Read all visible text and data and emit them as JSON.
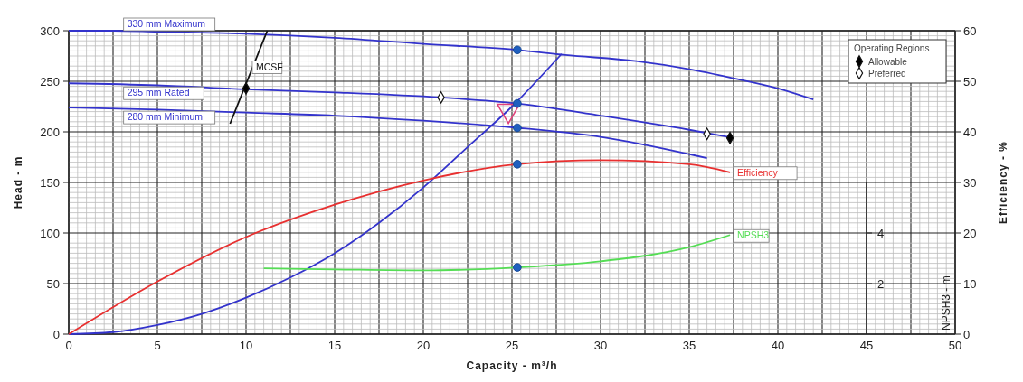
{
  "chart_data": {
    "type": "line",
    "xlabel": "Capacity - m³/h",
    "ylabel": "Head - m",
    "y2label": "Efficiency - %",
    "y3label": "NPSH3 - m",
    "legend_title": "Operating Regions",
    "legend": "top right",
    "grid": true,
    "marker": "none",
    "xlim": [
      0,
      50
    ],
    "xticks": [
      0,
      {
        "value": 2.5,
        "label": null
      },
      5,
      {
        "value": 7.5,
        "label": null
      },
      10,
      {
        "value": 12.5,
        "label": null
      },
      15,
      {
        "value": 17.5,
        "label": null
      },
      20,
      {
        "value": 22.5,
        "label": null
      },
      25,
      {
        "value": 27.5,
        "label": null
      },
      30,
      {
        "value": 32.5,
        "label": null
      },
      35,
      {
        "value": 37.5,
        "label": null
      },
      40,
      {
        "value": 42.5,
        "label": null
      },
      45,
      {
        "value": 47.5,
        "label": null
      },
      50
    ],
    "ylim": [
      0,
      300
    ],
    "yticks": [
      0,
      50,
      100,
      150,
      200,
      250,
      300
    ],
    "y2lim": [
      0,
      60
    ],
    "y2ticks": [
      0,
      10,
      20,
      30,
      40,
      50,
      60
    ],
    "y3lim": [
      0,
      6
    ],
    "y3ticks": [
      2,
      4
    ],
    "series": [
      {
        "name": "330 mm  Maximum",
        "color": "#3333cc",
        "x": [
          0,
          2.5,
          5,
          10,
          15,
          20,
          25.3,
          28,
          32,
          35,
          37.5,
          40,
          42
        ],
        "values": [
          300,
          300,
          299,
          297,
          293,
          287,
          281,
          276,
          270,
          262,
          253,
          243,
          232
        ]
      },
      {
        "name": "295 mm  Rated",
        "color": "#3333cc",
        "x": [
          0,
          5,
          10,
          15,
          21,
          25.3,
          30,
          35,
          37.2
        ],
        "values": [
          248,
          246,
          242,
          239,
          234,
          228,
          216,
          202,
          195
        ]
      },
      {
        "name": "280 mm  Minimum",
        "color": "#3333cc",
        "x": [
          0,
          5,
          10,
          15,
          20,
          25.3,
          30,
          36
        ],
        "values": [
          224,
          222,
          219,
          216,
          211,
          204,
          195,
          174
        ]
      },
      {
        "color": "#3333cc",
        "x": [
          0,
          2.5,
          5,
          7.5,
          10,
          12.5,
          15,
          17.5,
          20,
          22.5,
          25,
          27.8
        ],
        "values": [
          0,
          2,
          9,
          20,
          36,
          56,
          80,
          110,
          145,
          185,
          225,
          277
        ]
      },
      {
        "name": "MCSF",
        "color": "#111111",
        "x": [
          9.1,
          11.2
        ],
        "values": [
          208,
          300
        ]
      },
      {
        "name": "Efficiency",
        "axis": "y2",
        "color": "#e83030",
        "x": [
          0,
          5,
          10,
          15,
          20,
          25.3,
          30,
          35,
          37.3
        ],
        "values": [
          0,
          10.4,
          19.2,
          25.6,
          30.4,
          33.6,
          34.4,
          33.6,
          32
        ]
      },
      {
        "name": "NPSH3",
        "axis": "y3",
        "color": "#55dd55",
        "x": [
          11,
          15,
          20,
          25.3,
          30,
          35,
          37.3
        ],
        "values": [
          2.6,
          2.56,
          2.52,
          2.64,
          2.88,
          3.44,
          3.92
        ]
      },
      {
        "type": "scatter",
        "marker": "triangle",
        "color": "#e0407a",
        "x": [
          24.8
        ],
        "values": [
          221
        ]
      },
      {
        "name": "Allowable",
        "type": "scatter",
        "marker": "diamond",
        "color": "#000000",
        "x": [
          10,
          37.3
        ],
        "values": [
          243,
          194
        ]
      },
      {
        "name": "Preferred",
        "type": "scatter",
        "marker": "diamond",
        "color": "#ffffff",
        "x": [
          21,
          36
        ],
        "values": [
          234,
          198
        ]
      },
      {
        "type": "scatter",
        "marker": "circle",
        "color": "#1f5fbf",
        "x": [
          25.3,
          25.3,
          25.3
        ],
        "values": [
          281,
          228,
          204
        ]
      },
      {
        "type": "scatter",
        "marker": "circle",
        "axis": "y2",
        "color": "#1f5fbf",
        "x": [
          25.3
        ],
        "values": [
          33.6
        ]
      },
      {
        "type": "scatter",
        "marker": "circle",
        "axis": "y3",
        "color": "#1f5fbf",
        "x": [
          25.3
        ],
        "values": [
          2.64
        ]
      }
    ]
  }
}
